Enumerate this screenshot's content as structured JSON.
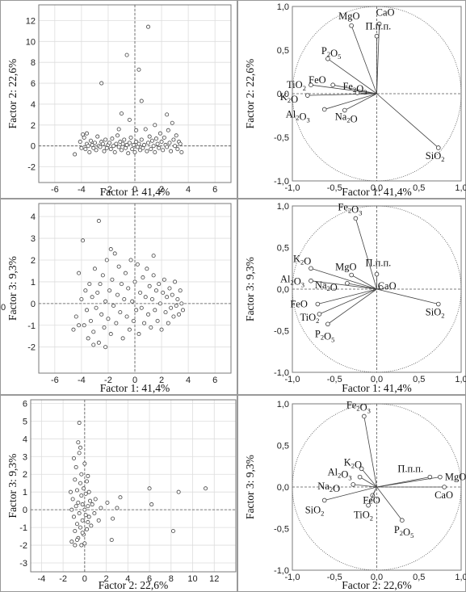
{
  "chart_data": [
    {
      "type": "scatter",
      "panel": "scores-f1-f2",
      "xlabel": "Factor 1: 41,4%",
      "ylabel": "Factor 2: 22,6%",
      "xlim": [
        -7.2,
        7.2
      ],
      "ylim": [
        -3.5,
        13.5
      ],
      "xticks": [
        -6,
        -4,
        -2,
        0,
        2,
        4,
        6
      ],
      "yticks": [
        -2,
        0,
        2,
        4,
        6,
        8,
        10,
        12
      ],
      "grid": true,
      "reference_lines": {
        "x": 0,
        "y": 0
      },
      "points": [
        [
          -4.5,
          -0.8
        ],
        [
          -4.1,
          0.4
        ],
        [
          -4.0,
          -0.2
        ],
        [
          -3.9,
          1.1
        ],
        [
          -3.8,
          0.8
        ],
        [
          -3.7,
          -0.3
        ],
        [
          -3.6,
          0.2
        ],
        [
          -3.5,
          0.0
        ],
        [
          -3.4,
          -0.6
        ],
        [
          -3.3,
          0.5
        ],
        [
          -3.2,
          0.1
        ],
        [
          -3.1,
          -0.2
        ],
        [
          -3.0,
          0.3
        ],
        [
          -2.9,
          -0.4
        ],
        [
          -2.8,
          0.9
        ],
        [
          -2.7,
          0.0
        ],
        [
          -2.6,
          -0.1
        ],
        [
          -2.5,
          0.4
        ],
        [
          -2.4,
          0.2
        ],
        [
          -2.3,
          -0.5
        ],
        [
          -2.2,
          0.6
        ],
        [
          -2.1,
          -0.2
        ],
        [
          -2.0,
          0.1
        ],
        [
          -1.9,
          0.3
        ],
        [
          -1.8,
          -0.3
        ],
        [
          -1.7,
          0.7
        ],
        [
          -1.6,
          0.0
        ],
        [
          -1.5,
          -0.6
        ],
        [
          -1.4,
          0.2
        ],
        [
          -1.3,
          1.0
        ],
        [
          -1.2,
          -0.1
        ],
        [
          -1.1,
          0.4
        ],
        [
          -1.0,
          -0.4
        ],
        [
          -0.9,
          0.2
        ],
        [
          -0.8,
          0.6
        ],
        [
          -0.7,
          -0.2
        ],
        [
          -0.6,
          0.1
        ],
        [
          -0.5,
          -0.7
        ],
        [
          -0.4,
          0.3
        ],
        [
          -0.3,
          0.8
        ],
        [
          -0.2,
          -0.3
        ],
        [
          -0.1,
          0.1
        ],
        [
          0.0,
          -0.6
        ],
        [
          0.1,
          0.4
        ],
        [
          0.2,
          -0.1
        ],
        [
          0.3,
          0.2
        ],
        [
          0.4,
          -0.4
        ],
        [
          0.5,
          0.6
        ],
        [
          0.6,
          -0.2
        ],
        [
          0.7,
          0.1
        ],
        [
          0.8,
          1.6
        ],
        [
          0.9,
          -0.5
        ],
        [
          1.0,
          0.3
        ],
        [
          1.1,
          0.9
        ],
        [
          1.2,
          -0.3
        ],
        [
          1.3,
          0.5
        ],
        [
          1.4,
          0.0
        ],
        [
          1.5,
          -0.6
        ],
        [
          1.6,
          0.7
        ],
        [
          1.7,
          0.2
        ],
        [
          1.8,
          -0.2
        ],
        [
          1.9,
          1.2
        ],
        [
          2.0,
          0.4
        ],
        [
          2.1,
          -0.4
        ],
        [
          2.2,
          0.8
        ],
        [
          2.3,
          0.1
        ],
        [
          2.4,
          -0.1
        ],
        [
          2.5,
          1.5
        ],
        [
          2.6,
          0.3
        ],
        [
          2.7,
          -0.5
        ],
        [
          2.8,
          2.2
        ],
        [
          2.9,
          0.6
        ],
        [
          3.0,
          0.0
        ],
        [
          3.1,
          1.0
        ],
        [
          3.2,
          -0.3
        ],
        [
          3.3,
          0.4
        ],
        [
          3.4,
          0.2
        ],
        [
          3.5,
          -0.6
        ],
        [
          -2.5,
          6.0
        ],
        [
          -0.6,
          8.7
        ],
        [
          0.3,
          7.3
        ],
        [
          1.0,
          11.4
        ],
        [
          -1.0,
          3.1
        ],
        [
          -0.4,
          2.5
        ],
        [
          0.5,
          4.3
        ],
        [
          2.4,
          3.0
        ],
        [
          1.5,
          2.0
        ],
        [
          -1.2,
          1.6
        ],
        [
          -3.6,
          1.2
        ],
        [
          0.1,
          1.5
        ]
      ]
    },
    {
      "type": "scatter",
      "panel": "loadings-f1-f2",
      "xlabel": "Factor 1: 41,4%",
      "ylabel": "Factor 2: 22,6%",
      "xlim": [
        -1.0,
        1.0
      ],
      "ylim": [
        -1.0,
        1.0
      ],
      "xticks": [
        -1.0,
        -0.5,
        0.0,
        0.5,
        1.0
      ],
      "xticklabels": [
        "-1,0",
        "-0,5",
        "0,0",
        "0,5",
        "1,0"
      ],
      "yticks": [
        -1.0,
        -0.5,
        0.0,
        0.5,
        1.0
      ],
      "yticklabels": [
        "-1,0",
        "-0,5",
        "0,0",
        "0,5",
        "1,0"
      ],
      "unit_circle": true,
      "vectors": [
        {
          "label": "MgO",
          "x": -0.3,
          "y": 0.78
        },
        {
          "label": "CaO",
          "x": 0.03,
          "y": 0.8
        },
        {
          "label": "П.п.п.",
          "x": 0.0,
          "y": 0.66
        },
        {
          "label": "P2O5",
          "x": -0.58,
          "y": 0.4
        },
        {
          "label": "TiO2",
          "x": -0.78,
          "y": 0.1
        },
        {
          "label": "FeO",
          "x": -0.52,
          "y": 0.1
        },
        {
          "label": "K2O",
          "x": -0.82,
          "y": -0.02
        },
        {
          "label": "Fe2O3",
          "x": -0.23,
          "y": 0.01
        },
        {
          "label": "Na2O",
          "x": -0.38,
          "y": -0.19
        },
        {
          "label": "Al2O3",
          "x": -0.62,
          "y": -0.18
        },
        {
          "label": "SiO2",
          "x": 0.73,
          "y": -0.62
        }
      ]
    },
    {
      "type": "scatter",
      "panel": "scores-f1-f3",
      "xlabel": "Factor 1: 41,4%",
      "ylabel": "Factor 3: 9,3%",
      "xlim": [
        -7.2,
        7.2
      ],
      "ylim": [
        -3.2,
        4.6
      ],
      "xticks": [
        -6,
        -4,
        -2,
        0,
        2,
        4,
        6
      ],
      "yticks": [
        -2,
        -1,
        0,
        1,
        2,
        3,
        4
      ],
      "grid": true,
      "reference_lines": {
        "x": 0,
        "y": 0
      },
      "points": [
        [
          -4.6,
          -1.2
        ],
        [
          -4.4,
          -0.6
        ],
        [
          -4.2,
          1.4
        ],
        [
          -4.0,
          0.2
        ],
        [
          -3.9,
          2.9
        ],
        [
          -3.8,
          -1.0
        ],
        [
          -3.7,
          0.6
        ],
        [
          -3.6,
          -0.3
        ],
        [
          -3.5,
          -1.6
        ],
        [
          -3.4,
          0.9
        ],
        [
          -3.3,
          -0.8
        ],
        [
          -3.2,
          0.3
        ],
        [
          -3.1,
          -1.3
        ],
        [
          -3.0,
          1.6
        ],
        [
          -2.9,
          -0.2
        ],
        [
          -2.8,
          0.5
        ],
        [
          -2.7,
          3.8
        ],
        [
          -2.7,
          -1.8
        ],
        [
          -2.6,
          0.9
        ],
        [
          -2.5,
          -0.5
        ],
        [
          -2.4,
          1.3
        ],
        [
          -2.3,
          -1.1
        ],
        [
          -2.2,
          0.1
        ],
        [
          -2.1,
          2.0
        ],
        [
          -2.0,
          -0.7
        ],
        [
          -1.9,
          0.6
        ],
        [
          -1.8,
          -1.4
        ],
        [
          -1.7,
          1.1
        ],
        [
          -1.6,
          -0.1
        ],
        [
          -1.5,
          2.3
        ],
        [
          -1.4,
          -0.9
        ],
        [
          -1.3,
          0.4
        ],
        [
          -1.2,
          1.7
        ],
        [
          -1.1,
          -0.4
        ],
        [
          -1.0,
          0.9
        ],
        [
          -0.9,
          -1.6
        ],
        [
          -0.8,
          0.2
        ],
        [
          -0.7,
          1.4
        ],
        [
          -0.6,
          -0.6
        ],
        [
          -0.5,
          0.7
        ],
        [
          -0.4,
          -1.2
        ],
        [
          -0.3,
          2.0
        ],
        [
          -0.2,
          0.1
        ],
        [
          -0.1,
          -0.8
        ],
        [
          0.0,
          1.0
        ],
        [
          0.1,
          -0.3
        ],
        [
          0.2,
          1.8
        ],
        [
          0.3,
          -1.4
        ],
        [
          0.4,
          0.5
        ],
        [
          0.5,
          -0.2
        ],
        [
          0.6,
          1.2
        ],
        [
          0.7,
          -0.9
        ],
        [
          0.8,
          0.3
        ],
        [
          0.9,
          1.6
        ],
        [
          1.0,
          -0.5
        ],
        [
          1.1,
          0.8
        ],
        [
          1.2,
          -1.1
        ],
        [
          1.3,
          0.2
        ],
        [
          1.4,
          1.3
        ],
        [
          1.5,
          -0.3
        ],
        [
          1.6,
          0.6
        ],
        [
          1.7,
          -0.8
        ],
        [
          1.8,
          0.9
        ],
        [
          1.9,
          0.0
        ],
        [
          2.0,
          -1.2
        ],
        [
          2.1,
          0.5
        ],
        [
          2.2,
          1.1
        ],
        [
          2.3,
          -0.4
        ],
        [
          2.4,
          0.3
        ],
        [
          2.5,
          -0.9
        ],
        [
          2.6,
          0.7
        ],
        [
          2.7,
          -0.2
        ],
        [
          2.8,
          0.4
        ],
        [
          2.9,
          -0.6
        ],
        [
          3.0,
          1.0
        ],
        [
          3.1,
          -0.1
        ],
        [
          3.2,
          0.2
        ],
        [
          3.3,
          -0.5
        ],
        [
          3.4,
          0.6
        ],
        [
          3.5,
          0.0
        ],
        [
          3.6,
          -0.3
        ],
        [
          1.4,
          2.2
        ],
        [
          -1.8,
          2.5
        ],
        [
          -4.2,
          -1.0
        ],
        [
          -3.1,
          -1.9
        ],
        [
          -2.2,
          -2.0
        ]
      ]
    },
    {
      "type": "scatter",
      "panel": "loadings-f1-f3",
      "xlabel": "Factor 1: 41,4%",
      "ylabel": "Factor 3: 9,3%",
      "xlim": [
        -1.0,
        1.0
      ],
      "ylim": [
        -1.0,
        1.0
      ],
      "xticks": [
        -1.0,
        -0.5,
        0.0,
        0.5,
        1.0
      ],
      "xticklabels": [
        "-1,0",
        "-0,5",
        "0,0",
        "0,5",
        "1,0"
      ],
      "yticks": [
        -1.0,
        -0.5,
        0.0,
        0.5,
        1.0
      ],
      "yticklabels": [
        "-1,0",
        "-0,5",
        "0,0",
        "0,5",
        "1,0"
      ],
      "unit_circle": true,
      "vectors": [
        {
          "label": "Fe2O3",
          "x": -0.25,
          "y": 0.85
        },
        {
          "label": "K2O",
          "x": -0.78,
          "y": 0.25
        },
        {
          "label": "MgO",
          "x": -0.3,
          "y": 0.17
        },
        {
          "label": "П.п.п.",
          "x": 0.0,
          "y": 0.18
        },
        {
          "label": "CaO",
          "x": 0.05,
          "y": 0.02
        },
        {
          "label": "Na2O",
          "x": -0.35,
          "y": 0.07
        },
        {
          "label": "Al2O3",
          "x": -0.78,
          "y": 0.1
        },
        {
          "label": "FeO",
          "x": -0.7,
          "y": -0.18
        },
        {
          "label": "TiO2",
          "x": -0.68,
          "y": -0.3
        },
        {
          "label": "P2O5",
          "x": -0.58,
          "y": -0.42
        },
        {
          "label": "SiO2",
          "x": 0.73,
          "y": -0.18
        }
      ]
    },
    {
      "type": "scatter",
      "panel": "scores-f2-f3",
      "xlabel": "Factor 2: 22,6%",
      "ylabel": "Factor 3: 9,3%",
      "xlim": [
        -5,
        14
      ],
      "ylim": [
        -3.5,
        6.2
      ],
      "xticks": [
        -4,
        -2,
        0,
        2,
        4,
        6,
        8,
        10,
        12
      ],
      "yticks": [
        -3,
        -2,
        -1,
        0,
        1,
        2,
        3,
        4,
        5,
        6
      ],
      "grid": true,
      "reference_lines": {
        "x": 0,
        "y": 0
      },
      "points": [
        [
          -1.2,
          -1.8
        ],
        [
          -1.1,
          0.6
        ],
        [
          -1.0,
          -0.4
        ],
        [
          -0.9,
          1.7
        ],
        [
          -0.9,
          -1.2
        ],
        [
          -0.8,
          0.2
        ],
        [
          -0.8,
          2.4
        ],
        [
          -0.7,
          -0.8
        ],
        [
          -0.7,
          1.1
        ],
        [
          -0.6,
          -1.6
        ],
        [
          -0.6,
          0.4
        ],
        [
          -0.5,
          3.2
        ],
        [
          -0.5,
          -0.2
        ],
        [
          -0.4,
          1.5
        ],
        [
          -0.4,
          -1.0
        ],
        [
          -0.3,
          0.8
        ],
        [
          -0.3,
          2.0
        ],
        [
          -0.2,
          -0.6
        ],
        [
          -0.2,
          0.3
        ],
        [
          -0.1,
          1.2
        ],
        [
          -0.1,
          -1.4
        ],
        [
          0.0,
          0.0
        ],
        [
          0.0,
          2.6
        ],
        [
          0.1,
          -0.3
        ],
        [
          0.1,
          0.9
        ],
        [
          0.2,
          -1.1
        ],
        [
          0.2,
          1.6
        ],
        [
          0.3,
          0.2
        ],
        [
          0.3,
          -0.7
        ],
        [
          0.4,
          1.0
        ],
        [
          0.4,
          -0.4
        ],
        [
          0.5,
          0.5
        ],
        [
          -0.6,
          3.8
        ],
        [
          -0.4,
          3.5
        ],
        [
          -0.9,
          -2.0
        ],
        [
          -0.3,
          -2.0
        ],
        [
          0.0,
          -1.9
        ],
        [
          -1.0,
          2.9
        ],
        [
          -1.3,
          1.0
        ],
        [
          -1.2,
          0.0
        ],
        [
          0.6,
          -0.9
        ],
        [
          0.7,
          0.3
        ],
        [
          0.9,
          -0.2
        ],
        [
          1.0,
          0.6
        ],
        [
          1.3,
          -0.6
        ],
        [
          1.5,
          0.1
        ],
        [
          2.1,
          0.4
        ],
        [
          2.5,
          -1.7
        ],
        [
          2.6,
          -0.5
        ],
        [
          3.0,
          0.1
        ],
        [
          3.3,
          0.7
        ],
        [
          6.0,
          1.2
        ],
        [
          6.2,
          0.3
        ],
        [
          8.2,
          -1.2
        ],
        [
          8.7,
          1.0
        ],
        [
          11.2,
          1.2
        ],
        [
          -0.5,
          4.9
        ],
        [
          -0.2,
          -1.3
        ],
        [
          0.3,
          1.9
        ],
        [
          -0.7,
          -1.7
        ]
      ]
    },
    {
      "type": "scatter",
      "panel": "loadings-f2-f3",
      "xlabel": "Factor 2: 22,6%",
      "ylabel": "Factor 3: 9,3%",
      "xlim": [
        -1.0,
        1.0
      ],
      "ylim": [
        -1.0,
        1.0
      ],
      "xticks": [
        -1.0,
        -0.5,
        0.0,
        0.5,
        1.0
      ],
      "xticklabels": [
        "-1,0",
        "-0,5",
        "0,0",
        "0,5",
        "1,0"
      ],
      "yticks": [
        -1.0,
        -0.5,
        0.0,
        0.5,
        1.0
      ],
      "yticklabels": [
        "-1,0",
        "-0,5",
        "0,0",
        "0,5",
        "1,0"
      ],
      "unit_circle": true,
      "vectors": [
        {
          "label": "Fe2O3",
          "x": -0.15,
          "y": 0.85
        },
        {
          "label": "K2O",
          "x": -0.18,
          "y": 0.22
        },
        {
          "label": "Al2O3",
          "x": -0.2,
          "y": 0.12
        },
        {
          "label": "Na2O",
          "x": -0.28,
          "y": 0.03
        },
        {
          "label": "П.п.п.",
          "x": 0.63,
          "y": 0.12
        },
        {
          "label": "MgO",
          "x": 0.75,
          "y": 0.12
        },
        {
          "label": "CaO",
          "x": 0.8,
          "y": 0.0
        },
        {
          "label": "FeO",
          "x": -0.05,
          "y": -0.1
        },
        {
          "label": "TiO2",
          "x": -0.1,
          "y": -0.22
        },
        {
          "label": "SiO2",
          "x": -0.62,
          "y": -0.16
        },
        {
          "label": "P2O5",
          "x": 0.3,
          "y": -0.4
        }
      ]
    }
  ],
  "figure": {
    "stray_tick_label": "0"
  }
}
